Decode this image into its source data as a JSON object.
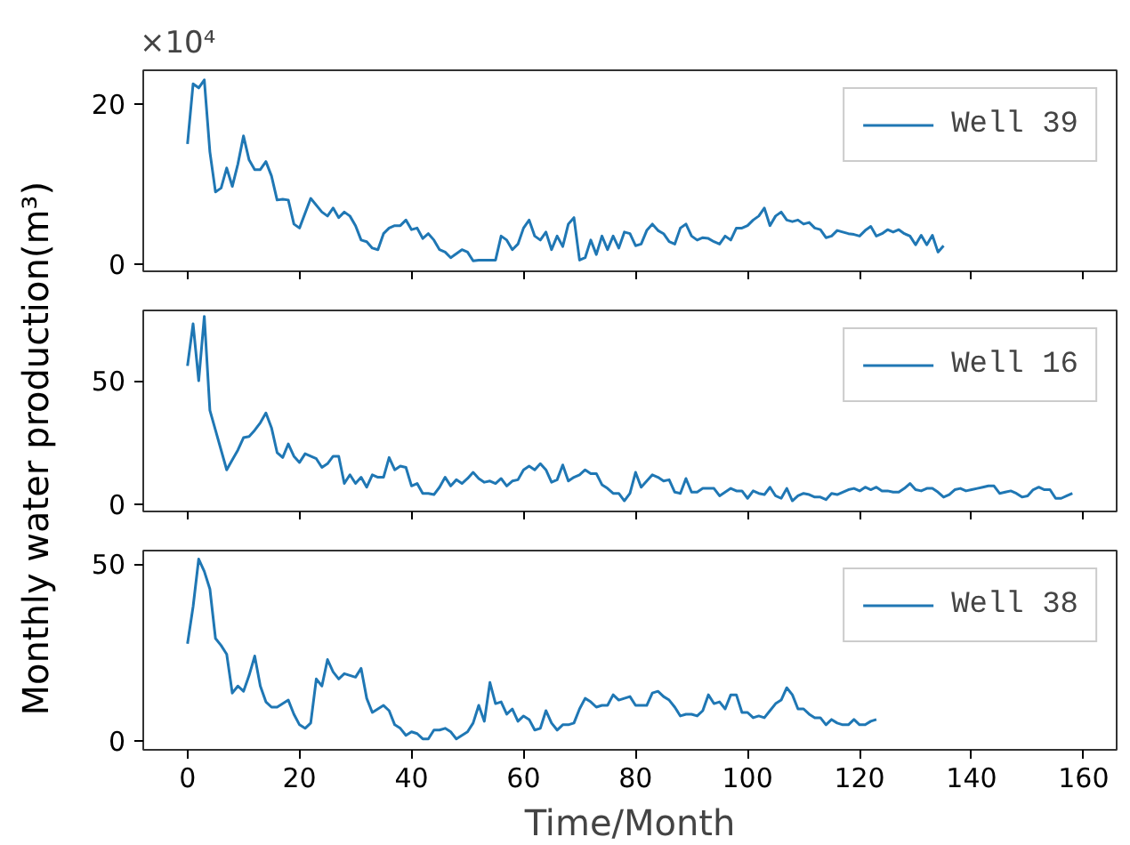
{
  "chart_data": [
    {
      "type": "line",
      "annotations": [
        "×10⁴"
      ],
      "xlim": [
        -7.9,
        165.9
      ],
      "ylim": [
        -0.9,
        24.2
      ],
      "xticks": [
        0,
        20,
        40,
        60,
        80,
        100,
        120,
        140,
        160
      ],
      "yticks": [
        0,
        20
      ],
      "tick_labels": "y",
      "legend": "top right",
      "grid": false,
      "series": [
        {
          "name": "Well 39",
          "color": "#1f77b4",
          "x": [
            0,
            1,
            2,
            3,
            4,
            5,
            6,
            7,
            8,
            9,
            10,
            11,
            12,
            13,
            14,
            15,
            16,
            17,
            18,
            19,
            20,
            22,
            24,
            25,
            26,
            27,
            28,
            29,
            30,
            31,
            32,
            33,
            34,
            35,
            36,
            37,
            38,
            39,
            40,
            41,
            42,
            43,
            44,
            45,
            46,
            47,
            48,
            49,
            50,
            51,
            52,
            55,
            56,
            57,
            58,
            59,
            60,
            61,
            62,
            63,
            64,
            65,
            66,
            67,
            68,
            69,
            70,
            71,
            72,
            73,
            74,
            75,
            76,
            77,
            78,
            79,
            80,
            81,
            82,
            83,
            84,
            85,
            86,
            87,
            88,
            89,
            90,
            91,
            92,
            93,
            94,
            95,
            96,
            97,
            98,
            99,
            100,
            101,
            102,
            103,
            104,
            105,
            106,
            107,
            108,
            109,
            110,
            111,
            112,
            113,
            114,
            115,
            116,
            117,
            118,
            119,
            120,
            121,
            122,
            123,
            124,
            125,
            126,
            127,
            128,
            129,
            130,
            131,
            132,
            133,
            134,
            135
          ],
          "values": [
            15,
            22.5,
            22,
            23,
            14,
            9,
            9.5,
            12,
            9.7,
            12.5,
            16,
            13,
            11.8,
            11.8,
            12.8,
            11,
            8,
            8.1,
            8,
            5,
            4.5,
            8.2,
            6.5,
            6,
            7,
            5.8,
            6.5,
            6,
            4.8,
            3,
            2.8,
            2,
            1.8,
            3.8,
            4.5,
            4.8,
            4.8,
            5.5,
            4.3,
            4.5,
            3.2,
            3.8,
            3,
            1.8,
            1.5,
            0.8,
            1.3,
            1.8,
            1.5,
            0.4,
            0.5,
            0.5,
            3.5,
            3,
            1.8,
            2.5,
            4.5,
            5.5,
            3.5,
            3,
            4,
            1.8,
            3.5,
            2.2,
            5,
            5.8,
            0.5,
            0.8,
            3,
            1.2,
            3.5,
            1.8,
            3.5,
            2,
            4,
            3.8,
            2.3,
            2.5,
            4.2,
            5,
            4.2,
            3.8,
            2.8,
            2.5,
            4.5,
            5,
            3.5,
            3,
            3.3,
            3.2,
            2.8,
            2.5,
            3.5,
            3,
            4.5,
            4.5,
            4.8,
            5.5,
            6,
            7,
            4.8,
            6,
            6.5,
            5.5,
            5.3,
            5.5,
            5,
            5.2,
            4.5,
            4.3,
            3.3,
            3.5,
            4.2,
            4,
            3.8,
            3.7,
            3.5,
            4.2,
            4.7,
            3.5,
            3.8,
            4.3,
            4,
            4.3,
            3.8,
            3.5,
            2.4,
            3.6,
            2.4,
            3.6,
            1.5,
            2.3
          ]
        }
      ]
    },
    {
      "type": "line",
      "ylabel": "Monthly water production(m³)",
      "xlim": [
        -7.9,
        165.9
      ],
      "ylim": [
        -2.8,
        78.4
      ],
      "xticks": [
        0,
        20,
        40,
        60,
        80,
        100,
        120,
        140,
        160
      ],
      "yticks": [
        0,
        50
      ],
      "tick_labels": "y",
      "legend": "top right",
      "grid": false,
      "series": [
        {
          "name": "Well 16",
          "color": "#1f77b4",
          "x": [
            0,
            1,
            2,
            3,
            4,
            5,
            6,
            7,
            8,
            9,
            10,
            11,
            12,
            13,
            14,
            15,
            16,
            17,
            18,
            19,
            20,
            21,
            22,
            23,
            24,
            25,
            26,
            27,
            28,
            29,
            30,
            31,
            32,
            33,
            34,
            35,
            36,
            37,
            38,
            39,
            40,
            41,
            42,
            43,
            44,
            45,
            46,
            47,
            48,
            49,
            50,
            51,
            52,
            53,
            54,
            55,
            56,
            57,
            58,
            59,
            60,
            61,
            62,
            63,
            64,
            65,
            66,
            67,
            68,
            69,
            70,
            71,
            72,
            73,
            74,
            75,
            76,
            77,
            78,
            79,
            80,
            81,
            82,
            83,
            84,
            85,
            86,
            87,
            88,
            89,
            90,
            91,
            92,
            93,
            94,
            95,
            96,
            97,
            98,
            99,
            100,
            101,
            102,
            103,
            104,
            105,
            106,
            107,
            108,
            109,
            110,
            111,
            112,
            113,
            114,
            115,
            116,
            117,
            118,
            119,
            120,
            121,
            122,
            123,
            124,
            125,
            126,
            127,
            128,
            129,
            130,
            131,
            132,
            133,
            134,
            135,
            136,
            137,
            138,
            139,
            140,
            141,
            142,
            143,
            144,
            145,
            146,
            147,
            148,
            149,
            150,
            151,
            152,
            153,
            154,
            155,
            156,
            157,
            158
          ],
          "values": [
            56,
            73,
            50,
            76,
            38,
            30,
            22,
            14,
            18,
            22,
            27,
            27.5,
            30,
            33,
            37,
            31,
            21,
            19,
            24.5,
            19.5,
            17,
            20.5,
            19.5,
            18.5,
            15,
            16.5,
            19.5,
            19.5,
            8.5,
            12,
            8.5,
            11,
            7,
            12,
            11,
            11,
            19,
            14,
            15.5,
            15,
            7.5,
            8.5,
            4.5,
            4.5,
            4,
            7,
            11,
            7.5,
            10,
            8.5,
            10.5,
            13,
            10.5,
            9,
            9.5,
            8.5,
            10.5,
            7.5,
            9.5,
            10,
            14,
            15.5,
            14,
            16.5,
            14,
            9,
            10,
            16,
            9.5,
            11,
            12,
            14,
            12.5,
            12.5,
            8,
            6.5,
            4.5,
            4.5,
            1.5,
            4.5,
            13,
            7,
            9.5,
            12,
            11,
            9.5,
            10,
            5,
            4.5,
            10.5,
            5,
            5,
            6.5,
            6.5,
            6.5,
            3.5,
            5,
            6.5,
            5.5,
            5.5,
            2.5,
            5.5,
            4.5,
            4,
            7,
            3.5,
            2.5,
            6.5,
            1.5,
            3.5,
            4.5,
            4,
            3,
            3,
            2,
            4.5,
            4,
            5,
            6,
            6.5,
            5.5,
            7,
            6,
            7,
            5.5,
            5.5,
            5,
            5,
            6.5,
            8.5,
            6,
            5.5,
            6.5,
            6.5,
            5,
            3,
            4,
            6,
            6.5,
            5.5,
            6,
            6.5,
            7,
            7.5,
            7.5,
            4.5,
            5,
            5.5,
            4.5,
            3,
            3.5,
            6,
            7,
            6,
            6,
            2.5,
            2.5,
            3.5,
            4.5
          ]
        }
      ]
    },
    {
      "type": "line",
      "xlabel": "Time/Month",
      "xlim": [
        -7.9,
        165.9
      ],
      "ylim": [
        -2.6,
        53.9
      ],
      "xticks": [
        0,
        20,
        40,
        60,
        80,
        100,
        120,
        140,
        160
      ],
      "yticks": [
        0,
        50
      ],
      "legend": "top right",
      "grid": false,
      "series": [
        {
          "name": "Well 38",
          "color": "#1f77b4",
          "x": [
            0,
            1,
            2,
            3,
            4,
            5,
            6,
            7,
            8,
            9,
            10,
            11,
            12,
            13,
            14,
            15,
            16,
            17,
            18,
            19,
            20,
            21,
            22,
            23,
            24,
            25,
            26,
            27,
            28,
            29,
            30,
            31,
            32,
            33,
            34,
            35,
            36,
            37,
            38,
            39,
            40,
            41,
            42,
            43,
            44,
            45,
            46,
            47,
            48,
            49,
            50,
            51,
            52,
            53,
            54,
            55,
            56,
            57,
            58,
            59,
            60,
            61,
            62,
            63,
            64,
            65,
            66,
            67,
            68,
            69,
            70,
            71,
            72,
            73,
            74,
            75,
            76,
            77,
            78,
            79,
            80,
            81,
            82,
            83,
            84,
            85,
            86,
            87,
            88,
            89,
            90,
            91,
            92,
            93,
            94,
            95,
            96,
            97,
            98,
            99,
            100,
            101,
            102,
            103,
            104,
            105,
            106,
            107,
            108,
            109,
            110,
            111,
            112,
            113,
            114,
            115,
            116,
            117,
            118,
            119,
            120,
            121,
            122,
            123
          ],
          "values": [
            27.5,
            38,
            51.5,
            48,
            43,
            29,
            27,
            24.5,
            13.5,
            15.5,
            14,
            18.5,
            24,
            15.5,
            11,
            9.5,
            9.5,
            10.5,
            11.5,
            7.5,
            4.5,
            3.5,
            5,
            17.5,
            15.5,
            23,
            19.5,
            17.5,
            19,
            18.5,
            18,
            20.5,
            12,
            8,
            9,
            10,
            8.5,
            4.5,
            3.5,
            1.5,
            2.5,
            2,
            0.5,
            0.5,
            3,
            3,
            3.5,
            2.5,
            0.5,
            1.5,
            2.5,
            5,
            10,
            5.5,
            16.5,
            10.5,
            11,
            7.5,
            9,
            5.5,
            7,
            6,
            3,
            3.5,
            8.5,
            5,
            3,
            4.5,
            4.5,
            5,
            9,
            12,
            11,
            9.5,
            10,
            10,
            13,
            11.5,
            12,
            12.5,
            10,
            10,
            10,
            13.5,
            14,
            12.5,
            11.5,
            9.5,
            7,
            7.5,
            7.5,
            7,
            8.5,
            13,
            10.5,
            11,
            9,
            13,
            13,
            8,
            8,
            6.5,
            7,
            6.5,
            8.5,
            10.5,
            11.5,
            15,
            13,
            9,
            9,
            7.5,
            6.5,
            6.5,
            4.5,
            6,
            5,
            4.5,
            4.5,
            6,
            4.5,
            4.5,
            5.5,
            6
          ]
        }
      ]
    }
  ]
}
